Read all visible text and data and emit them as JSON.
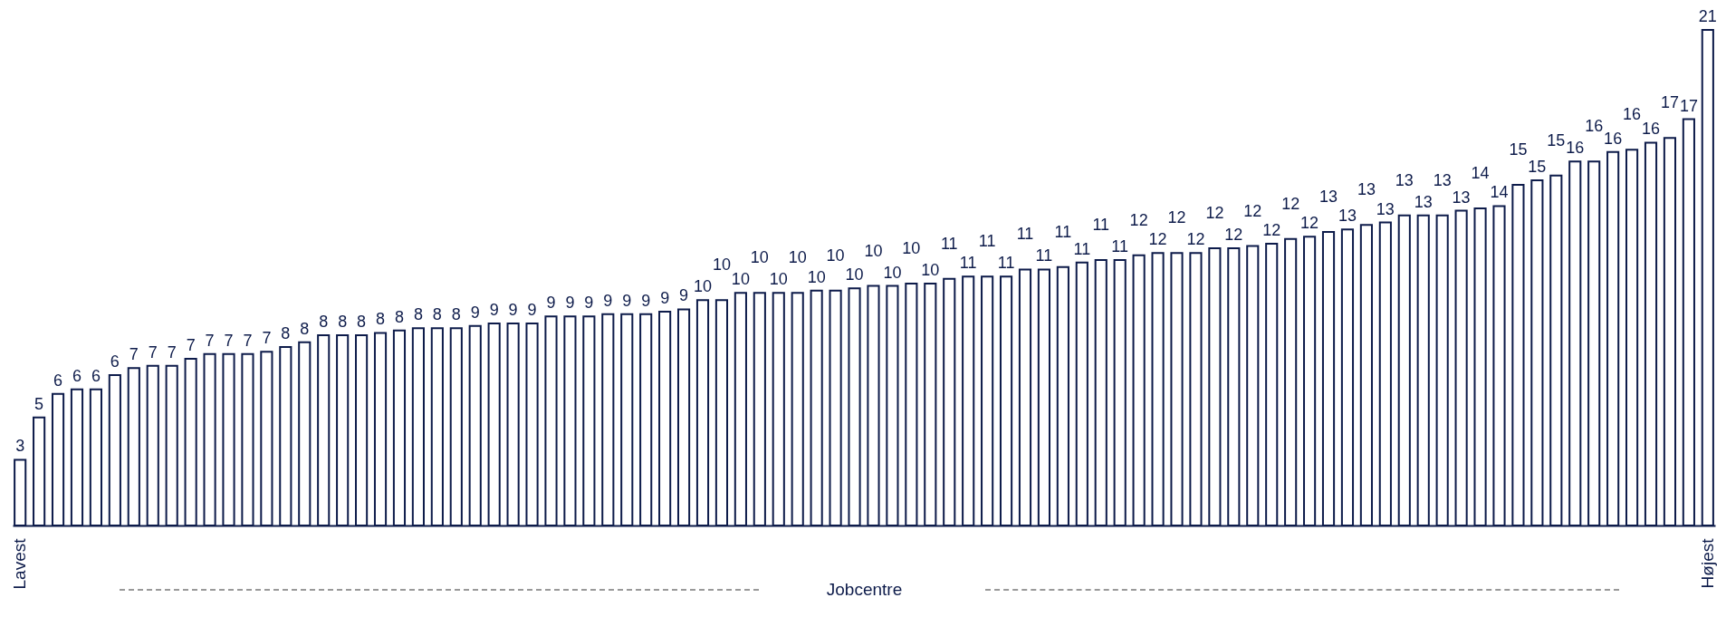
{
  "chart_data": {
    "type": "bar",
    "xlabel": "Jobcentre",
    "color": "#0d1b4a",
    "tick_labels": "x",
    "categories": [
      "Lavest",
      null,
      null,
      null,
      null,
      null,
      null,
      null,
      null,
      null,
      null,
      null,
      null,
      null,
      null,
      null,
      null,
      null,
      null,
      null,
      null,
      null,
      null,
      null,
      null,
      null,
      null,
      null,
      null,
      null,
      null,
      null,
      null,
      null,
      null,
      null,
      null,
      null,
      null,
      null,
      null,
      null,
      null,
      null,
      null,
      null,
      null,
      null,
      null,
      null,
      null,
      null,
      null,
      null,
      null,
      null,
      null,
      null,
      null,
      null,
      null,
      null,
      null,
      null,
      null,
      null,
      null,
      null,
      null,
      null,
      null,
      null,
      null,
      null,
      null,
      null,
      null,
      null,
      null,
      null,
      null,
      null,
      null,
      null,
      null,
      null,
      null,
      null,
      null,
      "Højest"
    ],
    "values": [
      2.8,
      4.6,
      5.6,
      5.8,
      5.8,
      6.4,
      6.7,
      6.8,
      6.8,
      7.1,
      7.3,
      7.3,
      7.3,
      7.4,
      7.6,
      7.8,
      8.1,
      8.1,
      8.1,
      8.2,
      8.3,
      8.4,
      8.4,
      8.4,
      8.5,
      8.6,
      8.6,
      8.6,
      8.9,
      8.9,
      8.9,
      9.0,
      9.0,
      9.0,
      9.1,
      9.2,
      9.6,
      9.6,
      9.9,
      9.9,
      9.9,
      9.9,
      10.0,
      10.0,
      10.1,
      10.2,
      10.2,
      10.3,
      10.3,
      10.5,
      10.6,
      10.6,
      10.6,
      10.9,
      10.9,
      11.0,
      11.2,
      11.3,
      11.3,
      11.5,
      11.6,
      11.6,
      11.6,
      11.8,
      11.8,
      11.9,
      12.0,
      12.2,
      12.3,
      12.5,
      12.6,
      12.8,
      12.9,
      13.2,
      13.2,
      13.2,
      13.4,
      13.5,
      13.6,
      14.5,
      14.7,
      14.9,
      15.5,
      15.5,
      15.9,
      16.0,
      16.3,
      16.5,
      17.3,
      21.1
    ],
    "value_labels": [
      "3",
      "5",
      "6",
      "6",
      "6",
      "6",
      "7",
      "7",
      "7",
      "7",
      "7",
      "7",
      "7",
      "7",
      "8",
      "8",
      "8",
      "8",
      "8",
      "8",
      "8",
      "8",
      "8",
      "8",
      "9",
      "9",
      "9",
      "9",
      "9",
      "9",
      "9",
      "9",
      "9",
      "9",
      "9",
      "9",
      "10",
      "10",
      "10",
      "10",
      "10",
      "10",
      "10",
      "10",
      "10",
      "10",
      "10",
      "10",
      "10",
      "11",
      "11",
      "11",
      "11",
      "11",
      "11",
      "11",
      "11",
      "11",
      "11",
      "12",
      "12",
      "12",
      "12",
      "12",
      "12",
      "12",
      "12",
      "12",
      "12",
      "13",
      "13",
      "13",
      "13",
      "13",
      "13",
      "13",
      "13",
      "14",
      "14",
      "15",
      "15",
      "15",
      "16",
      "16",
      "16",
      "16",
      "16",
      "17",
      "17",
      "21"
    ]
  }
}
